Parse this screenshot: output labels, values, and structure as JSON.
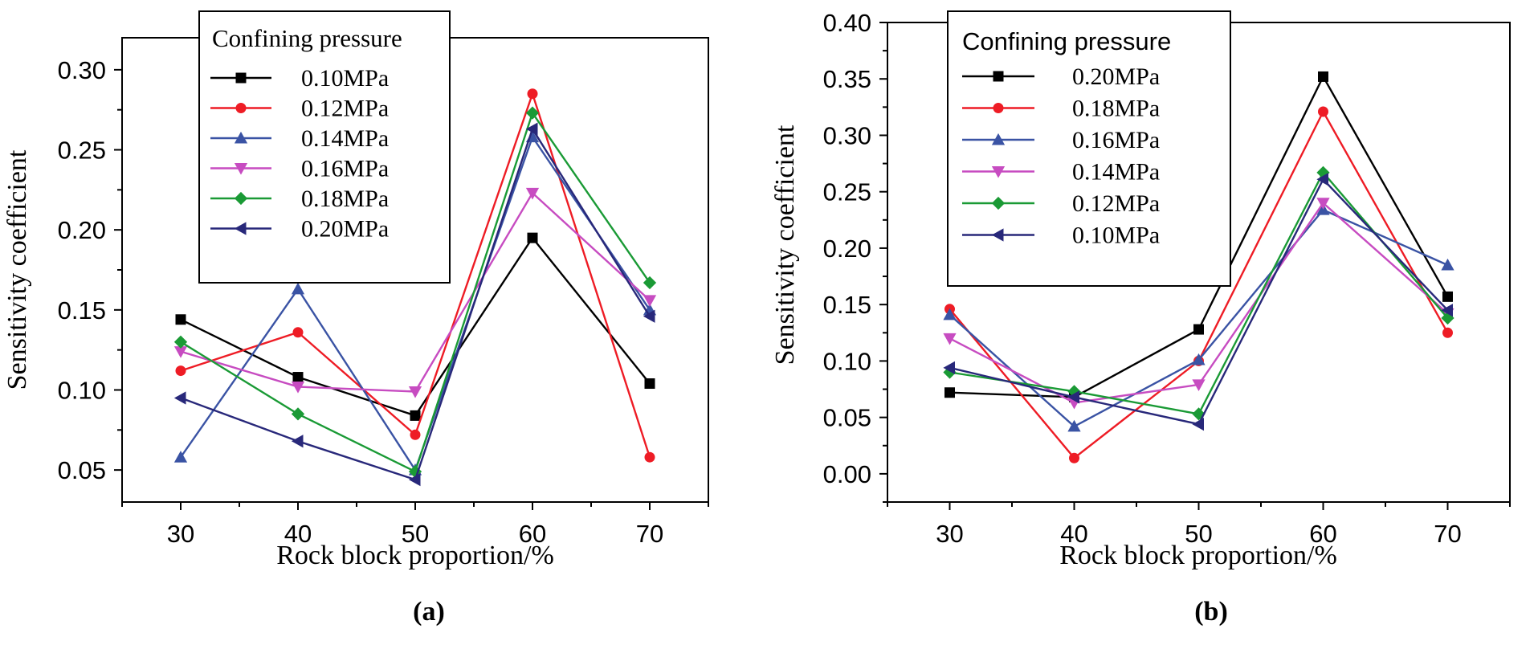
{
  "chart_data": [
    {
      "type": "line",
      "panel_label": "(a)",
      "xlabel": "Rock block proportion/%",
      "ylabel": "Sensitivity coefficient",
      "x": [
        30,
        40,
        50,
        60,
        70
      ],
      "x_ticks": [
        "30",
        "40",
        "50",
        "60",
        "70"
      ],
      "xlim": [
        25,
        75
      ],
      "ylim": [
        0.03,
        0.32
      ],
      "y_ticks": [
        "0.05",
        "0.10",
        "0.15",
        "0.20",
        "0.25",
        "0.30"
      ],
      "legend_title": "Confining pressure",
      "legend_position": "top-left",
      "series": [
        {
          "name": "0.10MPa",
          "color": "#000000",
          "marker": "square",
          "values": [
            0.144,
            0.108,
            0.084,
            0.195,
            0.104
          ]
        },
        {
          "name": "0.12MPa",
          "color": "#ee1c25",
          "marker": "circle",
          "values": [
            0.112,
            0.136,
            0.072,
            0.285,
            0.058
          ]
        },
        {
          "name": "0.14MPa",
          "color": "#3a53a4",
          "marker": "triangle-up",
          "values": [
            0.058,
            0.163,
            0.05,
            0.258,
            0.15
          ]
        },
        {
          "name": "0.16MPa",
          "color": "#c74cc1",
          "marker": "triangle-down",
          "values": [
            0.124,
            0.102,
            0.099,
            0.223,
            0.156
          ]
        },
        {
          "name": "0.18MPa",
          "color": "#1a9a35",
          "marker": "diamond",
          "values": [
            0.13,
            0.085,
            0.049,
            0.273,
            0.167
          ]
        },
        {
          "name": "0.20MPa",
          "color": "#28287a",
          "marker": "triangle-left",
          "values": [
            0.095,
            0.068,
            0.044,
            0.263,
            0.146
          ]
        }
      ]
    },
    {
      "type": "line",
      "panel_label": "(b)",
      "xlabel": "Rock block proportion/%",
      "ylabel": "Sensitivity coefficient",
      "x": [
        30,
        40,
        50,
        60,
        70
      ],
      "x_ticks": [
        "30",
        "40",
        "50",
        "60",
        "70"
      ],
      "xlim": [
        25,
        75
      ],
      "ylim": [
        -0.025,
        0.4
      ],
      "y_ticks": [
        "0.00",
        "0.05",
        "0.10",
        "0.15",
        "0.20",
        "0.25",
        "0.30",
        "0.35",
        "0.40"
      ],
      "legend_title": "Confining pressure",
      "legend_position": "top-left",
      "series": [
        {
          "name": "0.20MPa",
          "color": "#000000",
          "marker": "square",
          "values": [
            0.072,
            0.068,
            0.128,
            0.352,
            0.157
          ]
        },
        {
          "name": "0.18MPa",
          "color": "#ee1c25",
          "marker": "circle",
          "values": [
            0.146,
            0.014,
            0.1,
            0.321,
            0.125
          ]
        },
        {
          "name": "0.16MPa",
          "color": "#3a53a4",
          "marker": "triangle-up",
          "values": [
            0.141,
            0.042,
            0.101,
            0.234,
            0.185
          ]
        },
        {
          "name": "0.14MPa",
          "color": "#c74cc1",
          "marker": "triangle-down",
          "values": [
            0.12,
            0.063,
            0.079,
            0.24,
            0.142
          ]
        },
        {
          "name": "0.12MPa",
          "color": "#1a9a35",
          "marker": "diamond",
          "values": [
            0.09,
            0.073,
            0.053,
            0.267,
            0.138
          ]
        },
        {
          "name": "0.10MPa",
          "color": "#28287a",
          "marker": "triangle-left",
          "values": [
            0.094,
            0.068,
            0.044,
            0.261,
            0.145
          ]
        }
      ]
    }
  ]
}
